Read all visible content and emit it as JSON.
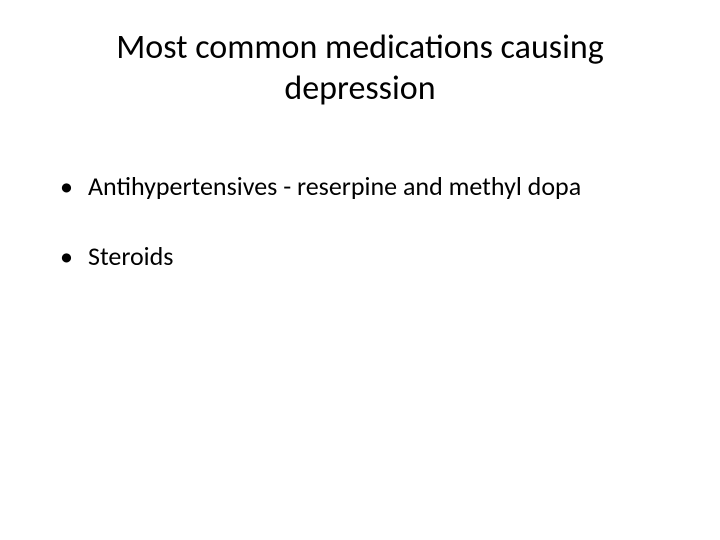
{
  "slide": {
    "title": "Most common medications causing depression",
    "title_fontsize": 34,
    "title_color": "#000000",
    "background_color": "#ffffff",
    "bullets": [
      {
        "text": "Antihypertensives - reserpine and methyl dopa"
      },
      {
        "text": "Steroids"
      }
    ],
    "bullet_fontsize": 26,
    "bullet_color": "#000000",
    "bullet_marker": "•"
  }
}
